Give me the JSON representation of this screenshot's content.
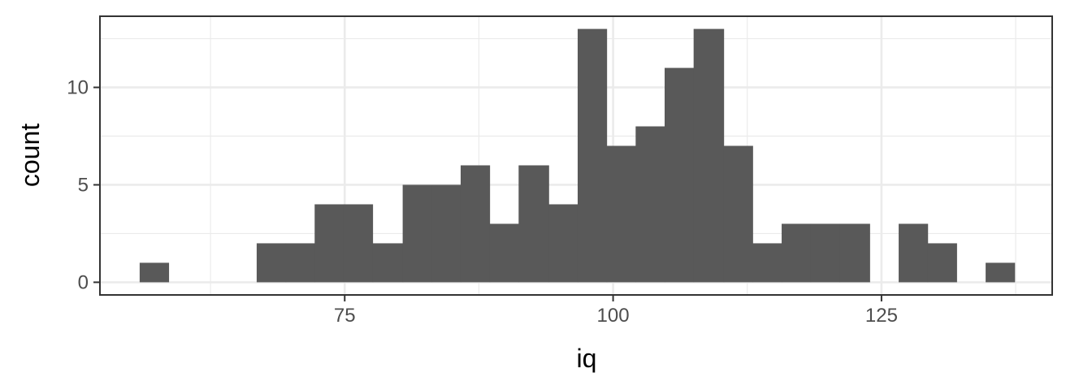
{
  "chart_data": {
    "type": "histogram",
    "xlabel": "iq",
    "ylabel": "count",
    "xlim": [
      52.2,
      140.9
    ],
    "ylim": [
      -0.65,
      13.65
    ],
    "x_ticks": [
      75,
      100,
      125
    ],
    "x_tick_labels": [
      "75",
      "100",
      "125"
    ],
    "x_minor_ticks": [
      62.5,
      87.5,
      112.5,
      137.5
    ],
    "y_ticks": [
      0,
      5,
      10
    ],
    "y_tick_labels": [
      "0",
      "5",
      "10"
    ],
    "y_minor_ticks": [
      2.5,
      7.5,
      12.5
    ],
    "grid": true,
    "bar_color": "#595959",
    "bins": [
      {
        "x0": 55.9,
        "x1": 58.6,
        "count": 1
      },
      {
        "x0": 58.6,
        "x1": 61.3,
        "count": 0
      },
      {
        "x0": 61.3,
        "x1": 64.1,
        "count": 0
      },
      {
        "x0": 64.1,
        "x1": 66.8,
        "count": 0
      },
      {
        "x0": 66.8,
        "x1": 69.5,
        "count": 2
      },
      {
        "x0": 69.5,
        "x1": 72.2,
        "count": 2
      },
      {
        "x0": 72.2,
        "x1": 74.9,
        "count": 4
      },
      {
        "x0": 74.9,
        "x1": 77.6,
        "count": 4
      },
      {
        "x0": 77.6,
        "x1": 80.4,
        "count": 2
      },
      {
        "x0": 80.4,
        "x1": 83.1,
        "count": 5
      },
      {
        "x0": 83.1,
        "x1": 85.8,
        "count": 5
      },
      {
        "x0": 85.8,
        "x1": 88.5,
        "count": 6
      },
      {
        "x0": 88.5,
        "x1": 91.2,
        "count": 3
      },
      {
        "x0": 91.2,
        "x1": 94.0,
        "count": 6
      },
      {
        "x0": 94.0,
        "x1": 96.7,
        "count": 4
      },
      {
        "x0": 96.7,
        "x1": 99.4,
        "count": 13
      },
      {
        "x0": 99.4,
        "x1": 102.1,
        "count": 7
      },
      {
        "x0": 102.1,
        "x1": 104.8,
        "count": 8
      },
      {
        "x0": 104.8,
        "x1": 107.5,
        "count": 11
      },
      {
        "x0": 107.5,
        "x1": 110.3,
        "count": 13
      },
      {
        "x0": 110.3,
        "x1": 113.0,
        "count": 7
      },
      {
        "x0": 113.0,
        "x1": 115.7,
        "count": 2
      },
      {
        "x0": 115.7,
        "x1": 118.4,
        "count": 3
      },
      {
        "x0": 118.4,
        "x1": 121.1,
        "count": 3
      },
      {
        "x0": 121.1,
        "x1": 123.9,
        "count": 3
      },
      {
        "x0": 123.9,
        "x1": 126.6,
        "count": 0
      },
      {
        "x0": 126.6,
        "x1": 129.3,
        "count": 3
      },
      {
        "x0": 129.3,
        "x1": 132.0,
        "count": 2
      },
      {
        "x0": 132.0,
        "x1": 134.7,
        "count": 0
      },
      {
        "x0": 134.7,
        "x1": 137.4,
        "count": 1
      }
    ]
  }
}
